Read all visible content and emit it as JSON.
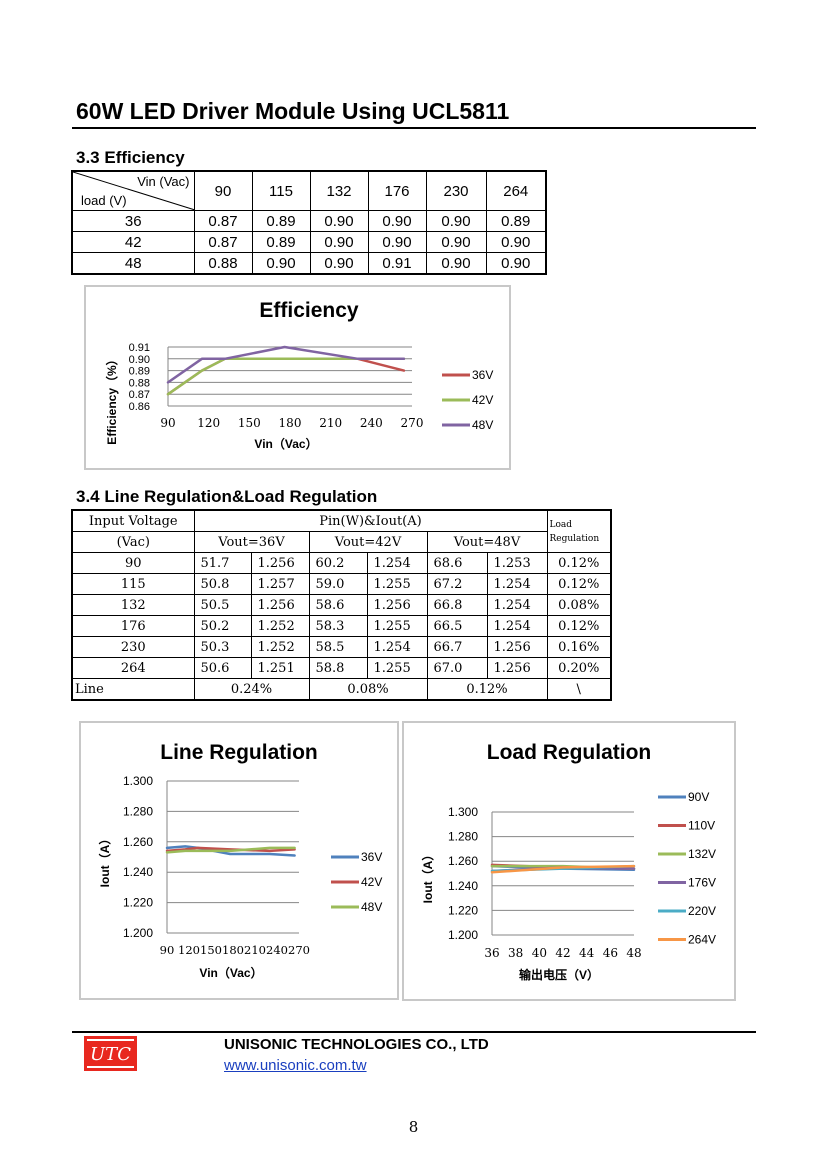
{
  "header": {
    "title": "60W LED Driver Module Using UCL5811"
  },
  "efficiency_section": {
    "heading": "3.3 Efficiency",
    "table": {
      "corner_top": "Vin (Vac)",
      "corner_bottom": "load (V)",
      "columns": [
        "90",
        "115",
        "132",
        "176",
        "230",
        "264"
      ],
      "rows": [
        {
          "load": "36",
          "values": [
            "0.87",
            "0.89",
            "0.90",
            "0.90",
            "0.90",
            "0.89"
          ]
        },
        {
          "load": "42",
          "values": [
            "0.87",
            "0.89",
            "0.90",
            "0.90",
            "0.90",
            "0.90"
          ]
        },
        {
          "load": "48",
          "values": [
            "0.88",
            "0.90",
            "0.90",
            "0.91",
            "0.90",
            "0.90"
          ]
        }
      ]
    }
  },
  "regulation_section": {
    "heading": "3.4 Line Regulation&Load Regulation",
    "table": {
      "input_voltage_label": "Input Voltage",
      "vac_label": "(Vac)",
      "pin_iout_label": "Pin(W)&Iout(A)",
      "load_reg_label_1": "Load",
      "load_reg_label_2": "Regulation",
      "vout_labels": [
        "Vout=36V",
        "Vout=42V",
        "Vout=48V"
      ],
      "rows": [
        {
          "vin": "90",
          "cells": [
            "51.7",
            "1.256",
            "60.2",
            "1.254",
            "68.6",
            "1.253"
          ],
          "load_reg": "0.12%"
        },
        {
          "vin": "115",
          "cells": [
            "50.8",
            "1.257",
            "59.0",
            "1.255",
            "67.2",
            "1.254"
          ],
          "load_reg": "0.12%"
        },
        {
          "vin": "132",
          "cells": [
            "50.5",
            "1.256",
            "58.6",
            "1.256",
            "66.8",
            "1.254"
          ],
          "load_reg": "0.08%"
        },
        {
          "vin": "176",
          "cells": [
            "50.2",
            "1.252",
            "58.3",
            "1.255",
            "66.5",
            "1.254"
          ],
          "load_reg": "0.12%"
        },
        {
          "vin": "230",
          "cells": [
            "50.3",
            "1.252",
            "58.5",
            "1.254",
            "66.7",
            "1.256"
          ],
          "load_reg": "0.16%"
        },
        {
          "vin": "264",
          "cells": [
            "50.6",
            "1.251",
            "58.8",
            "1.255",
            "67.0",
            "1.256"
          ],
          "load_reg": "0.20%"
        }
      ],
      "line_label": "Line",
      "line_values": [
        "0.24%",
        "0.08%",
        "0.12%"
      ],
      "line_last": "\\"
    }
  },
  "chart_data": [
    {
      "type": "line",
      "title": "Efficiency",
      "xlabel": "Vin（Vac）",
      "ylabel": "Efficiency（%）",
      "x_ticks": [
        "90",
        "120",
        "150",
        "180",
        "210",
        "240",
        "270"
      ],
      "y_ticks": [
        "0.86",
        "0.87",
        "0.88",
        "0.89",
        "0.90",
        "0.91"
      ],
      "xlim": [
        90,
        270
      ],
      "ylim": [
        0.86,
        0.91
      ],
      "x": [
        90,
        115,
        132,
        176,
        230,
        264
      ],
      "series": [
        {
          "name": "36V",
          "color": "#c0504d",
          "values": [
            0.87,
            0.89,
            0.9,
            0.9,
            0.9,
            0.89
          ]
        },
        {
          "name": "42V",
          "color": "#9bbb59",
          "values": [
            0.87,
            0.89,
            0.9,
            0.9,
            0.9,
            0.9
          ]
        },
        {
          "name": "48V",
          "color": "#8064a2",
          "values": [
            0.88,
            0.9,
            0.9,
            0.91,
            0.9,
            0.9
          ]
        }
      ],
      "legend": "right",
      "grid": true
    },
    {
      "type": "line",
      "title": "Line Regulation",
      "xlabel": "Vin（Vac）",
      "ylabel": "Iout（A）",
      "x_ticks": [
        "90",
        "120",
        "150",
        "180",
        "210",
        "240",
        "270"
      ],
      "y_ticks": [
        "1.200",
        "1.220",
        "1.240",
        "1.260",
        "1.280",
        "1.300"
      ],
      "xlim": [
        90,
        270
      ],
      "ylim": [
        1.2,
        1.3
      ],
      "x": [
        90,
        115,
        132,
        176,
        230,
        264
      ],
      "series": [
        {
          "name": "36V",
          "color": "#4f81bd",
          "values": [
            1.256,
            1.257,
            1.256,
            1.252,
            1.252,
            1.251
          ]
        },
        {
          "name": "42V",
          "color": "#c0504d",
          "values": [
            1.254,
            1.255,
            1.256,
            1.255,
            1.254,
            1.255
          ]
        },
        {
          "name": "48V",
          "color": "#9bbb59",
          "values": [
            1.253,
            1.254,
            1.254,
            1.254,
            1.256,
            1.256
          ]
        }
      ],
      "legend": "right",
      "grid": true
    },
    {
      "type": "line",
      "title": "Load Regulation",
      "xlabel": "输出电压（V）",
      "ylabel": "Iout（A）",
      "x_ticks": [
        "36",
        "38",
        "40",
        "42",
        "44",
        "46",
        "48"
      ],
      "y_ticks": [
        "1.200",
        "1.220",
        "1.240",
        "1.260",
        "1.280",
        "1.300"
      ],
      "xlim": [
        36,
        48
      ],
      "ylim": [
        1.2,
        1.3
      ],
      "x": [
        36,
        42,
        48
      ],
      "series": [
        {
          "name": "90V",
          "color": "#4f81bd",
          "values": [
            1.256,
            1.254,
            1.253
          ]
        },
        {
          "name": "110V",
          "color": "#c0504d",
          "values": [
            1.257,
            1.255,
            1.254
          ]
        },
        {
          "name": "132V",
          "color": "#9bbb59",
          "values": [
            1.256,
            1.256,
            1.254
          ]
        },
        {
          "name": "176V",
          "color": "#8064a2",
          "values": [
            1.252,
            1.255,
            1.254
          ]
        },
        {
          "name": "220V",
          "color": "#4bacc6",
          "values": [
            1.252,
            1.254,
            1.256
          ]
        },
        {
          "name": "264V",
          "color": "#f79646",
          "values": [
            1.251,
            1.255,
            1.256
          ]
        }
      ],
      "legend": "right",
      "grid": true
    }
  ],
  "footer": {
    "logo_text": "UTC",
    "company": "UNISONIC TECHNOLOGIES CO., LTD",
    "website": "www.unisonic.com.tw",
    "page_number": "8"
  }
}
